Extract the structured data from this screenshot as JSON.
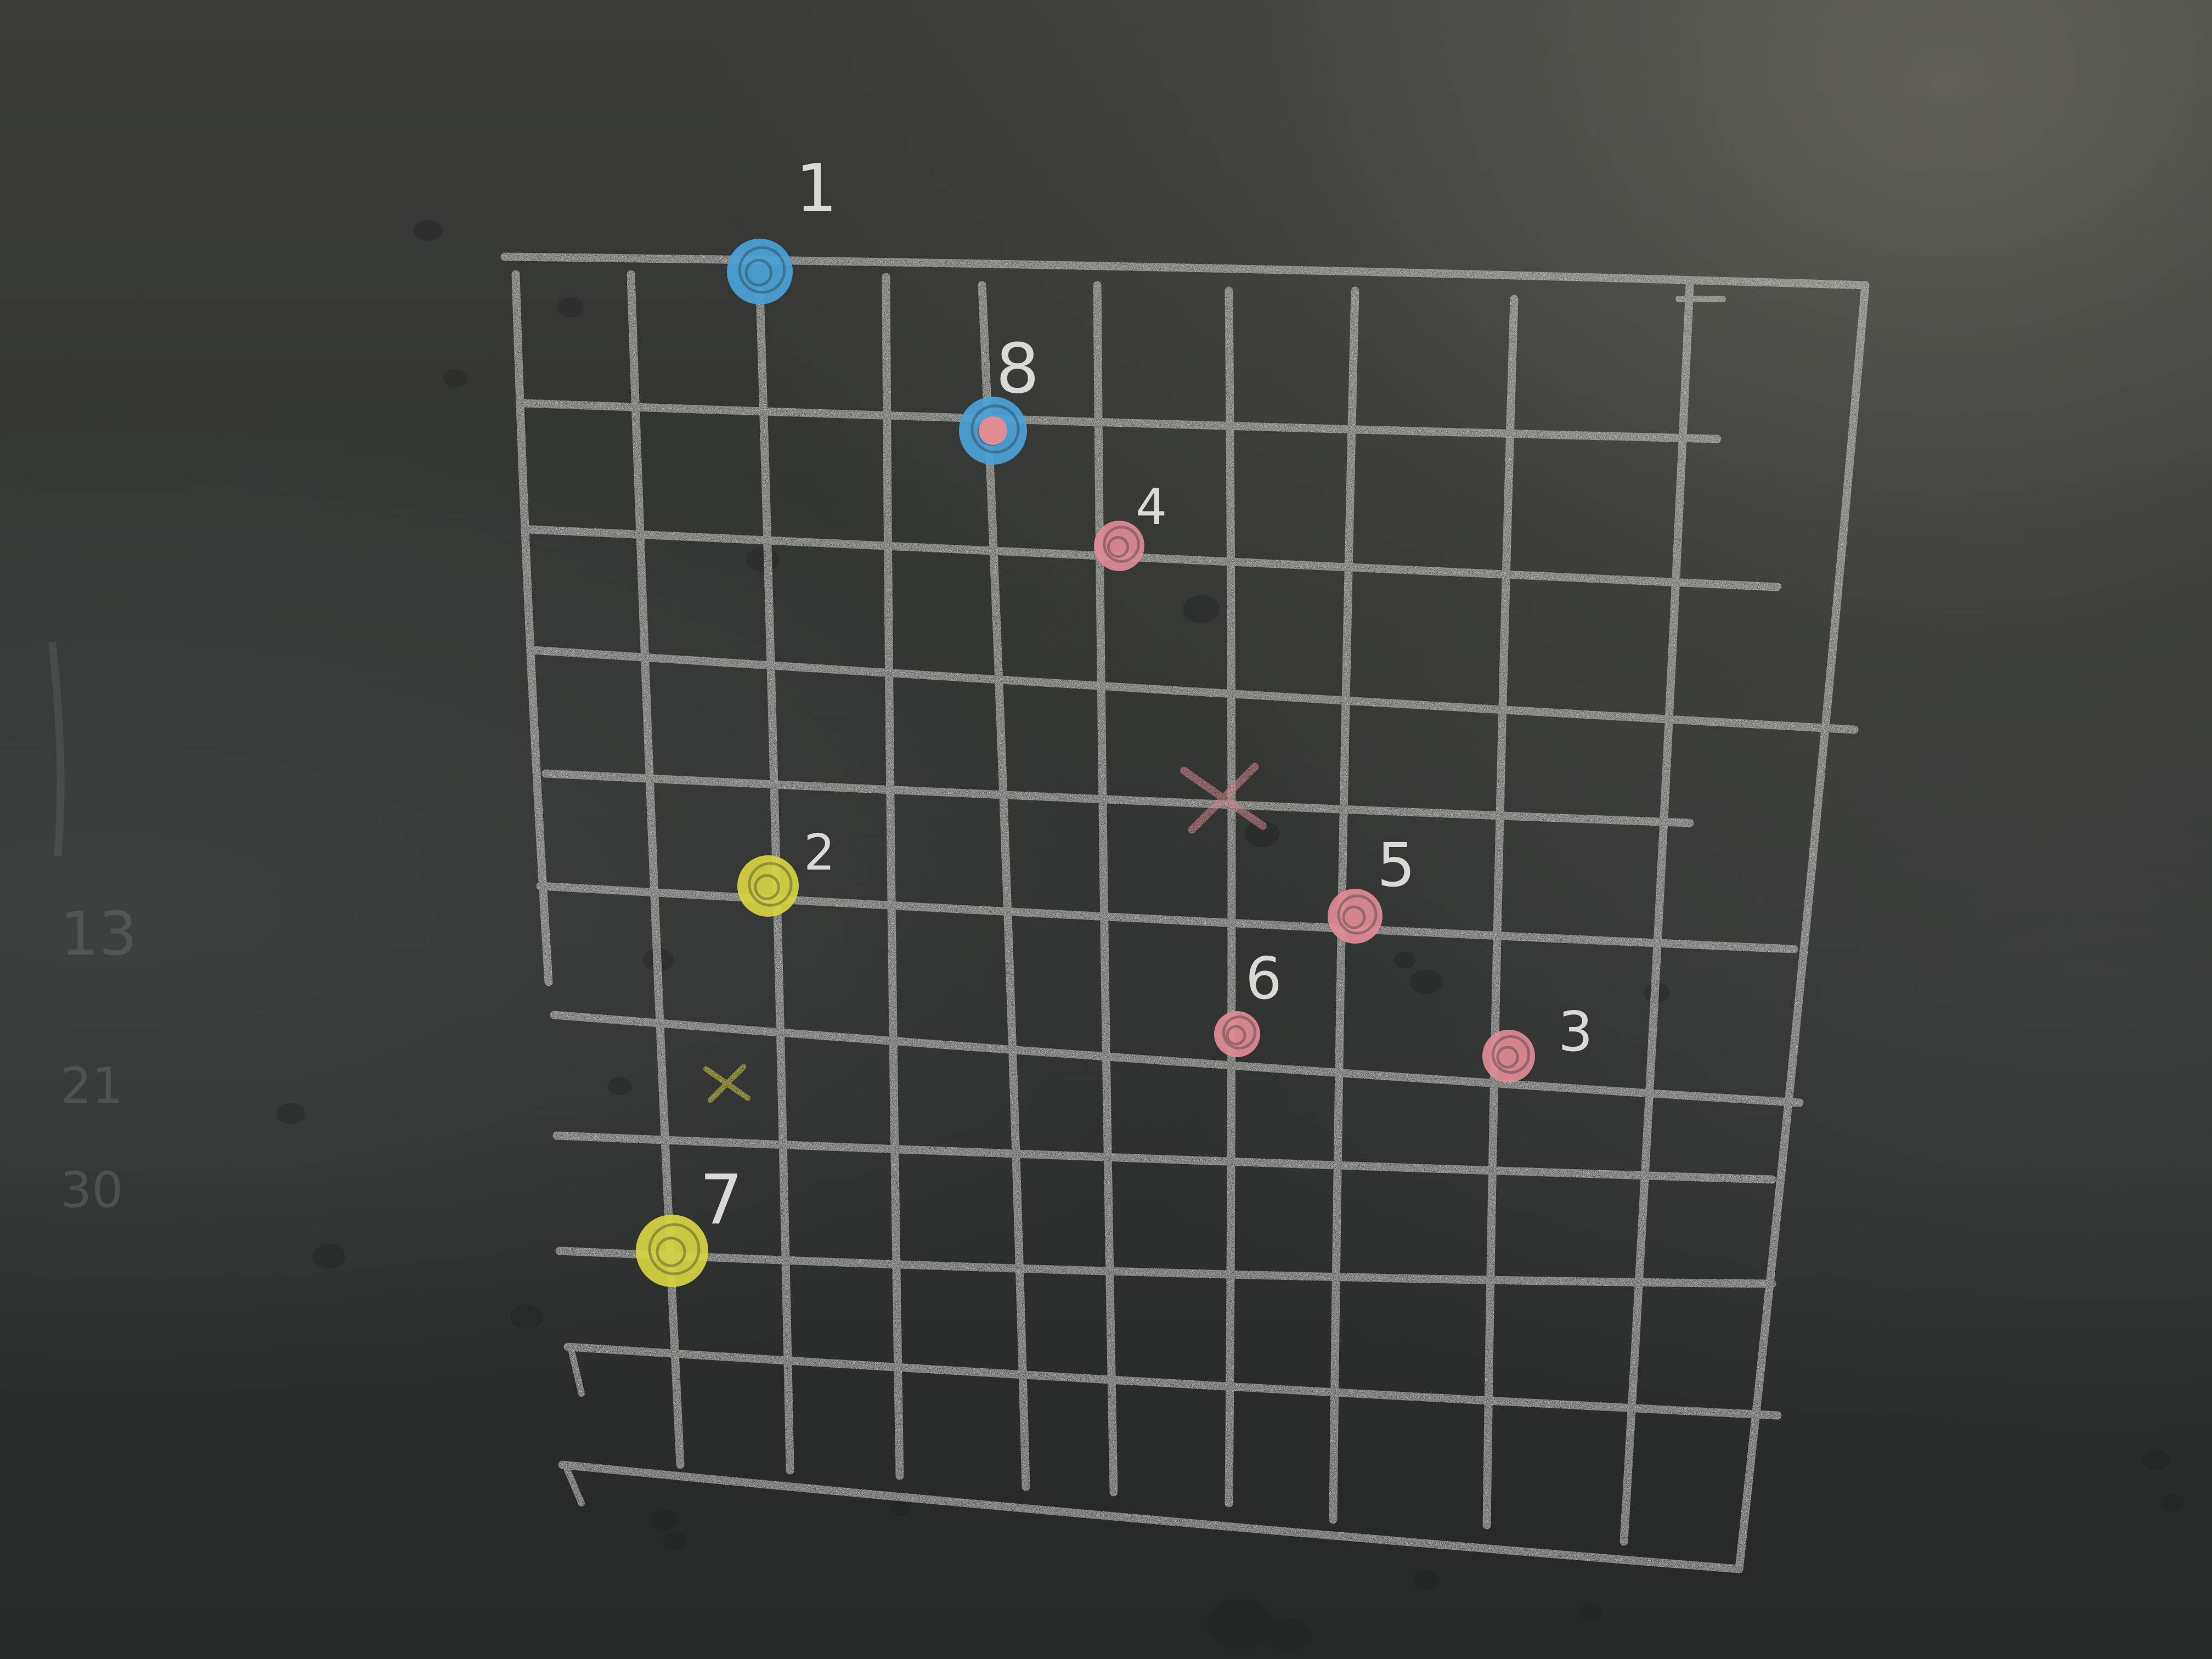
{
  "board": {
    "background_color": "#2f3130",
    "chalk_color": "#d9d9d6"
  },
  "grid": {
    "columns": 10,
    "rows": 10
  },
  "markers": [
    {
      "label": "1",
      "color": "#4aa3d8"
    },
    {
      "label": "8",
      "color": "#4aa3d8",
      "inner_color": "#e08c97"
    },
    {
      "label": "4",
      "color": "#e08c97"
    },
    {
      "label": "2",
      "color": "#d8d441"
    },
    {
      "label": "5",
      "color": "#e08c97"
    },
    {
      "label": "6",
      "color": "#e08c97"
    },
    {
      "label": "3",
      "color": "#e08c97"
    },
    {
      "label": "7",
      "color": "#d8d441"
    }
  ],
  "crosses": [
    {
      "color": "#e08c97"
    },
    {
      "color": "#d8d441"
    }
  ],
  "faint_marks": [
    "13",
    "21",
    "30"
  ]
}
